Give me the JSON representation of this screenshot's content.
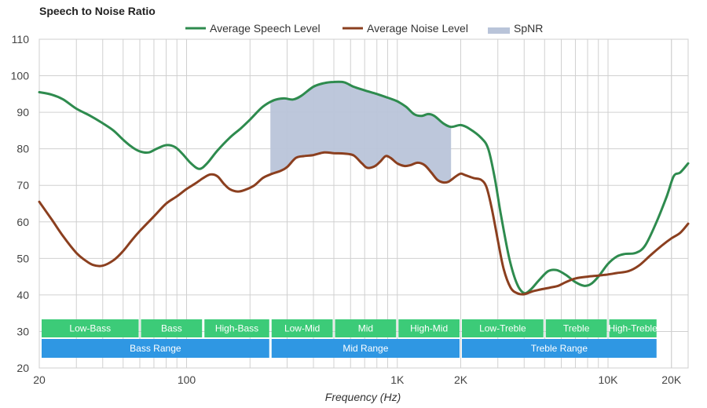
{
  "chart_data": {
    "type": "line",
    "title": "Speech to Noise Ratio",
    "xlabel": "Frequency (Hz)",
    "ylabel": "",
    "x_scale": "log",
    "xlim": [
      20,
      24000
    ],
    "ylim": [
      20,
      110
    ],
    "grid": true,
    "legend_position": "top-center",
    "x_ticks": [
      {
        "value": 20,
        "label": "20"
      },
      {
        "value": 100,
        "label": "100"
      },
      {
        "value": 1000,
        "label": "1K"
      },
      {
        "value": 2000,
        "label": "2K"
      },
      {
        "value": 10000,
        "label": "10K"
      },
      {
        "value": 20000,
        "label": "20K"
      }
    ],
    "y_ticks": [
      20,
      30,
      40,
      50,
      60,
      70,
      80,
      90,
      100,
      110
    ],
    "legend": [
      {
        "name": "Average Speech Level",
        "kind": "line",
        "color": "#2e8b4e"
      },
      {
        "name": "Average Noise Level",
        "kind": "line",
        "color": "#8b3f1f"
      },
      {
        "name": "SpNR",
        "kind": "area",
        "color": "#b9c4d9"
      }
    ],
    "series": [
      {
        "name": "Average Speech Level",
        "color": "#2e8b4e",
        "points": [
          [
            20,
            95.5
          ],
          [
            23,
            94.8
          ],
          [
            26,
            93.5
          ],
          [
            30,
            91.0
          ],
          [
            35,
            89.0
          ],
          [
            40,
            87.0
          ],
          [
            45,
            85.0
          ],
          [
            50,
            82.5
          ],
          [
            55,
            80.5
          ],
          [
            60,
            79.3
          ],
          [
            66,
            79.0
          ],
          [
            72,
            80.0
          ],
          [
            80,
            81.0
          ],
          [
            88,
            80.5
          ],
          [
            95,
            78.8
          ],
          [
            105,
            76.0
          ],
          [
            115,
            74.5
          ],
          [
            125,
            76.0
          ],
          [
            140,
            79.5
          ],
          [
            160,
            83.0
          ],
          [
            180,
            85.5
          ],
          [
            200,
            88.0
          ],
          [
            230,
            91.5
          ],
          [
            260,
            93.3
          ],
          [
            290,
            93.8
          ],
          [
            320,
            93.5
          ],
          [
            350,
            94.5
          ],
          [
            400,
            97.0
          ],
          [
            450,
            98.0
          ],
          [
            500,
            98.3
          ],
          [
            560,
            98.2
          ],
          [
            620,
            97.0
          ],
          [
            700,
            96.0
          ],
          [
            800,
            95.0
          ],
          [
            900,
            94.0
          ],
          [
            1000,
            93.0
          ],
          [
            1100,
            91.5
          ],
          [
            1200,
            89.5
          ],
          [
            1300,
            89.0
          ],
          [
            1400,
            89.5
          ],
          [
            1500,
            89.0
          ],
          [
            1650,
            87.0
          ],
          [
            1800,
            86.0
          ],
          [
            2000,
            86.5
          ],
          [
            2200,
            85.5
          ],
          [
            2500,
            83.0
          ],
          [
            2700,
            80.0
          ],
          [
            2900,
            72.0
          ],
          [
            3100,
            62.0
          ],
          [
            3400,
            50.0
          ],
          [
            3700,
            43.0
          ],
          [
            4000,
            40.5
          ],
          [
            4300,
            41.5
          ],
          [
            4700,
            44.0
          ],
          [
            5200,
            46.5
          ],
          [
            5700,
            46.8
          ],
          [
            6300,
            45.5
          ],
          [
            7000,
            43.5
          ],
          [
            7700,
            42.5
          ],
          [
            8300,
            43.0
          ],
          [
            9000,
            45.0
          ],
          [
            10000,
            48.5
          ],
          [
            11000,
            50.5
          ],
          [
            12000,
            51.2
          ],
          [
            13500,
            51.5
          ],
          [
            15000,
            53.5
          ],
          [
            17000,
            60.0
          ],
          [
            19000,
            67.0
          ],
          [
            20500,
            72.5
          ],
          [
            22000,
            73.5
          ],
          [
            24000,
            76.0
          ]
        ]
      },
      {
        "name": "Average Noise Level",
        "color": "#8b3f1f",
        "points": [
          [
            20,
            65.5
          ],
          [
            23,
            60.5
          ],
          [
            26,
            56.0
          ],
          [
            30,
            51.5
          ],
          [
            33,
            49.5
          ],
          [
            36,
            48.2
          ],
          [
            40,
            48.0
          ],
          [
            45,
            49.5
          ],
          [
            50,
            52.0
          ],
          [
            55,
            55.0
          ],
          [
            60,
            57.5
          ],
          [
            70,
            61.5
          ],
          [
            80,
            65.0
          ],
          [
            90,
            67.0
          ],
          [
            100,
            69.0
          ],
          [
            110,
            70.5
          ],
          [
            120,
            72.0
          ],
          [
            130,
            73.0
          ],
          [
            140,
            72.5
          ],
          [
            150,
            70.5
          ],
          [
            160,
            69.0
          ],
          [
            175,
            68.3
          ],
          [
            190,
            68.8
          ],
          [
            210,
            70.0
          ],
          [
            230,
            72.0
          ],
          [
            250,
            73.0
          ],
          [
            280,
            74.0
          ],
          [
            300,
            75.0
          ],
          [
            330,
            77.5
          ],
          [
            360,
            78.0
          ],
          [
            400,
            78.3
          ],
          [
            450,
            79.0
          ],
          [
            500,
            78.8
          ],
          [
            560,
            78.7
          ],
          [
            620,
            78.2
          ],
          [
            680,
            76.0
          ],
          [
            720,
            74.8
          ],
          [
            780,
            75.2
          ],
          [
            830,
            76.5
          ],
          [
            880,
            78.0
          ],
          [
            930,
            77.5
          ],
          [
            1000,
            76.0
          ],
          [
            1080,
            75.3
          ],
          [
            1150,
            75.5
          ],
          [
            1250,
            76.2
          ],
          [
            1350,
            75.5
          ],
          [
            1450,
            73.5
          ],
          [
            1550,
            71.5
          ],
          [
            1650,
            70.8
          ],
          [
            1750,
            71.0
          ],
          [
            1900,
            72.5
          ],
          [
            2000,
            73.2
          ],
          [
            2100,
            72.8
          ],
          [
            2300,
            72.0
          ],
          [
            2500,
            71.5
          ],
          [
            2650,
            69.5
          ],
          [
            2800,
            64.0
          ],
          [
            3000,
            55.0
          ],
          [
            3200,
            47.0
          ],
          [
            3450,
            42.0
          ],
          [
            3700,
            40.5
          ],
          [
            4000,
            40.2
          ],
          [
            4400,
            41.0
          ],
          [
            4800,
            41.5
          ],
          [
            5300,
            42.0
          ],
          [
            5800,
            42.5
          ],
          [
            6300,
            43.5
          ],
          [
            7000,
            44.5
          ],
          [
            8000,
            45.0
          ],
          [
            9000,
            45.3
          ],
          [
            10000,
            45.6
          ],
          [
            11000,
            46.0
          ],
          [
            12500,
            46.5
          ],
          [
            14000,
            48.0
          ],
          [
            16000,
            51.0
          ],
          [
            18000,
            53.5
          ],
          [
            20000,
            55.5
          ],
          [
            22000,
            57.0
          ],
          [
            24000,
            59.5
          ]
        ]
      }
    ],
    "spnr_area": {
      "name": "SpNR",
      "x_range": [
        250,
        1800
      ],
      "upper": "Average Speech Level",
      "lower": "Average Noise Level"
    },
    "bands_row1": [
      {
        "label": "Low-Bass",
        "from": 20,
        "to": 60
      },
      {
        "label": "Bass",
        "from": 60,
        "to": 120
      },
      {
        "label": "High-Bass",
        "from": 120,
        "to": 250
      },
      {
        "label": "Low-Mid",
        "from": 250,
        "to": 500
      },
      {
        "label": "Mid",
        "from": 500,
        "to": 1000
      },
      {
        "label": "High-Mid",
        "from": 1000,
        "to": 2000
      },
      {
        "label": "Low-Treble",
        "from": 2000,
        "to": 5000
      },
      {
        "label": "Treble",
        "from": 5000,
        "to": 10000
      },
      {
        "label": "High-Treble",
        "from": 10000,
        "to": 20000
      }
    ],
    "bands_row2": [
      {
        "label": "Bass Range",
        "from": 20,
        "to": 250
      },
      {
        "label": "Mid Range",
        "from": 250,
        "to": 2000
      },
      {
        "label": "Treble Range",
        "from": 2000,
        "to": 20000
      }
    ],
    "band_colors": {
      "row1": "#3ccb78",
      "row2": "#2f97e3"
    }
  }
}
